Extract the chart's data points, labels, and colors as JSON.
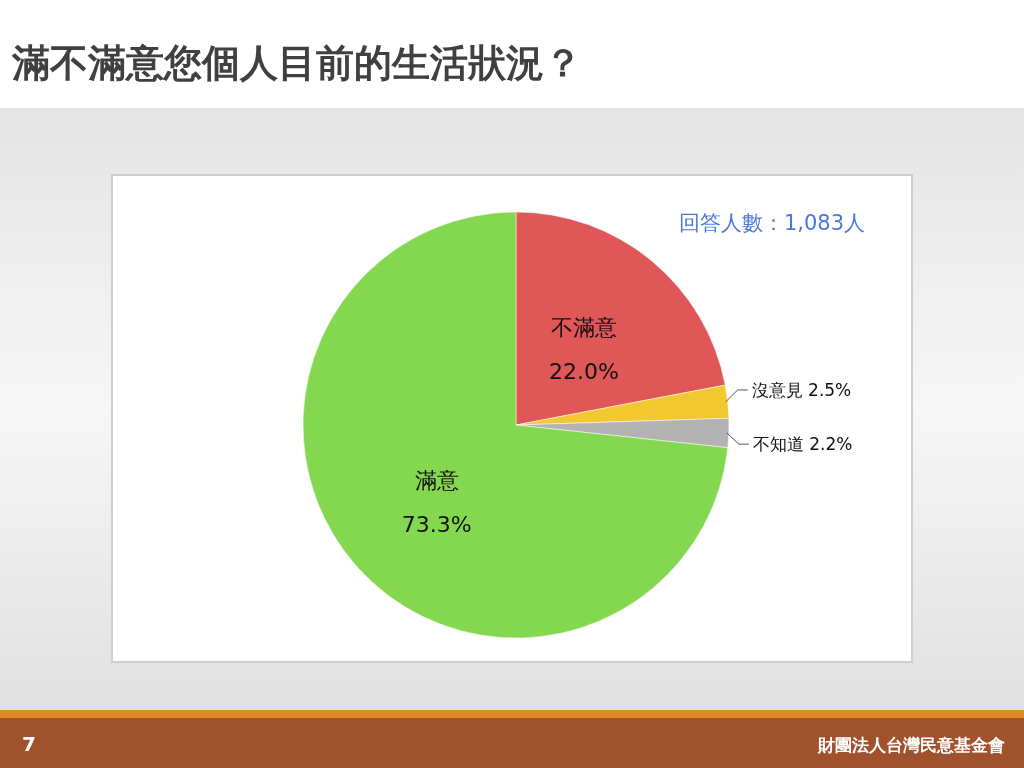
{
  "chart_data": {
    "type": "pie",
    "title": "滿不滿意您個人目前的生活狀況？",
    "categories": [
      "不滿意",
      "沒意見",
      "不知道",
      "滿意"
    ],
    "values": [
      22.0,
      2.5,
      2.2,
      73.3
    ],
    "colors": [
      "#e05757",
      "#f2c830",
      "#b3b3b3",
      "#84d84f"
    ],
    "value_labels": [
      "22.0%",
      "2.5%",
      "2.2%",
      "73.3%"
    ],
    "legend": false,
    "annotations": [
      "回答人數：1,083人",
      "7",
      "財團法人台灣民意基金會"
    ]
  }
}
